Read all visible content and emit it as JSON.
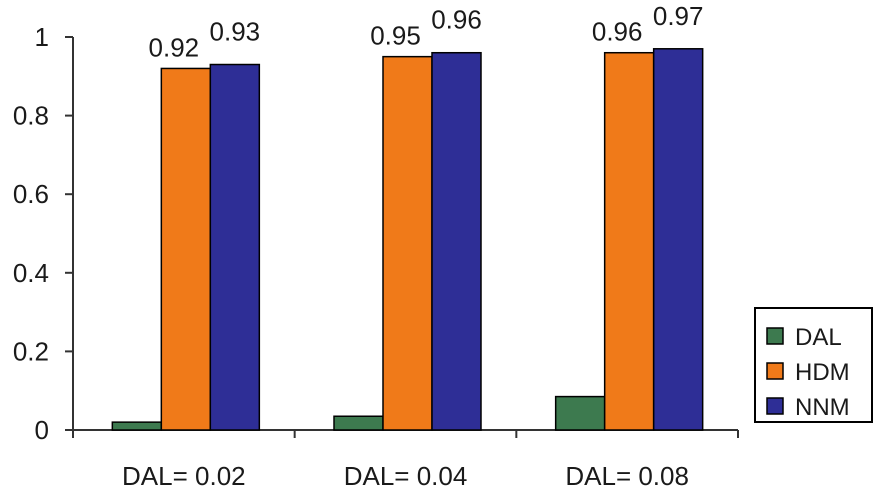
{
  "chart_data": {
    "type": "bar",
    "title": "",
    "xlabel": "",
    "ylabel": "",
    "ylim": [
      0,
      1
    ],
    "yticks": [
      "0",
      "0.2",
      "0.4",
      "0.6",
      "0.8",
      "1"
    ],
    "categories": [
      "DAL= 0.02",
      "DAL= 0.04",
      "DAL= 0.08"
    ],
    "series": [
      {
        "name": "DAL",
        "color": "#3d7a4f",
        "values": [
          0.02,
          0.035,
          0.085
        ],
        "data_labels": [
          "",
          "",
          ""
        ]
      },
      {
        "name": "HDM",
        "color": "#f07a19",
        "values": [
          0.92,
          0.95,
          0.96
        ],
        "data_labels": [
          "0.92",
          "0.95",
          "0.96"
        ]
      },
      {
        "name": "NNM",
        "color": "#2e2e96",
        "values": [
          0.93,
          0.96,
          0.97
        ],
        "data_labels": [
          "0.93",
          "0.96",
          "0.97"
        ]
      }
    ],
    "grid": false,
    "legend": {
      "placement": "bottom-right",
      "entries": [
        "DAL",
        "HDM",
        "NNM"
      ]
    }
  }
}
